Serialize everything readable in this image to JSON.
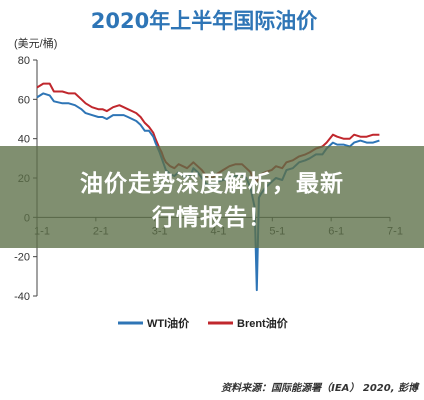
{
  "chart_data": {
    "type": "line",
    "title": "2020年上半年国际油价",
    "ylabel": "(美元/桶)",
    "xlabel": "",
    "ylim": [
      -40,
      80
    ],
    "yticks": [
      "80",
      "60",
      "40",
      "20",
      "0",
      "-20",
      "-40"
    ],
    "xticks": [
      "1-1",
      "2-1",
      "3-1",
      "4-1",
      "5-1",
      "6-1",
      "7-1"
    ],
    "grid": false,
    "legend_position": "bottom",
    "series": [
      {
        "name": "WTI油价",
        "color": "#2e75b6",
        "points": [
          [
            0,
            61
          ],
          [
            3,
            63
          ],
          [
            6,
            62
          ],
          [
            8,
            59
          ],
          [
            12,
            58
          ],
          [
            15,
            58
          ],
          [
            18,
            57
          ],
          [
            21,
            55
          ],
          [
            23,
            53
          ],
          [
            26,
            52
          ],
          [
            29,
            51
          ],
          [
            31,
            51
          ],
          [
            33,
            50
          ],
          [
            36,
            52
          ],
          [
            39,
            52
          ],
          [
            41,
            52
          ],
          [
            43,
            51
          ],
          [
            45,
            50
          ],
          [
            47,
            49
          ],
          [
            49,
            47
          ],
          [
            51,
            44
          ],
          [
            53,
            44
          ],
          [
            55,
            41
          ],
          [
            56,
            38
          ],
          [
            58,
            33
          ],
          [
            59,
            30
          ],
          [
            60,
            27
          ],
          [
            61,
            24
          ],
          [
            63,
            22
          ],
          [
            65,
            21
          ],
          [
            67,
            23
          ],
          [
            69,
            21
          ],
          [
            71,
            20
          ],
          [
            73,
            22
          ],
          [
            74,
            25
          ],
          [
            76,
            23
          ],
          [
            78,
            20
          ],
          [
            80,
            17
          ],
          [
            83,
            16
          ],
          [
            85,
            18
          ],
          [
            88,
            19
          ],
          [
            91,
            20
          ],
          [
            94,
            21
          ],
          [
            97,
            22
          ],
          [
            99,
            20
          ],
          [
            101,
            15
          ],
          [
            102,
            10
          ],
          [
            103,
            5
          ],
          [
            104,
            -37
          ],
          [
            105,
            10
          ],
          [
            106,
            12
          ],
          [
            108,
            15
          ],
          [
            111,
            18
          ],
          [
            113,
            20
          ],
          [
            116,
            19
          ],
          [
            118,
            24
          ],
          [
            121,
            25
          ],
          [
            124,
            28
          ],
          [
            127,
            29
          ],
          [
            129,
            30
          ],
          [
            132,
            32
          ],
          [
            135,
            32
          ],
          [
            137,
            35
          ],
          [
            140,
            38
          ],
          [
            142,
            37
          ],
          [
            145,
            37
          ],
          [
            148,
            36
          ],
          [
            150,
            38
          ],
          [
            153,
            39
          ],
          [
            156,
            38
          ],
          [
            159,
            38
          ],
          [
            162,
            39
          ]
        ]
      },
      {
        "name": "Brent油价",
        "color": "#c0272d",
        "points": [
          [
            0,
            66
          ],
          [
            3,
            68
          ],
          [
            6,
            68
          ],
          [
            8,
            64
          ],
          [
            12,
            64
          ],
          [
            15,
            63
          ],
          [
            18,
            63
          ],
          [
            21,
            60
          ],
          [
            23,
            58
          ],
          [
            26,
            56
          ],
          [
            29,
            55
          ],
          [
            31,
            55
          ],
          [
            33,
            54
          ],
          [
            36,
            56
          ],
          [
            39,
            57
          ],
          [
            41,
            56
          ],
          [
            43,
            55
          ],
          [
            45,
            54
          ],
          [
            47,
            53
          ],
          [
            49,
            51
          ],
          [
            51,
            48
          ],
          [
            53,
            46
          ],
          [
            55,
            43
          ],
          [
            56,
            40
          ],
          [
            58,
            35
          ],
          [
            59,
            33
          ],
          [
            60,
            30
          ],
          [
            61,
            28
          ],
          [
            63,
            26
          ],
          [
            65,
            25
          ],
          [
            67,
            27
          ],
          [
            69,
            26
          ],
          [
            71,
            25
          ],
          [
            73,
            27
          ],
          [
            74,
            28
          ],
          [
            76,
            26
          ],
          [
            78,
            24
          ],
          [
            80,
            21
          ],
          [
            83,
            20
          ],
          [
            85,
            22
          ],
          [
            88,
            24
          ],
          [
            91,
            26
          ],
          [
            94,
            27
          ],
          [
            97,
            27
          ],
          [
            99,
            25
          ],
          [
            101,
            23
          ],
          [
            102,
            20
          ],
          [
            103,
            19
          ],
          [
            104,
            18
          ],
          [
            105,
            20
          ],
          [
            106,
            22
          ],
          [
            108,
            23
          ],
          [
            111,
            24
          ],
          [
            113,
            26
          ],
          [
            116,
            25
          ],
          [
            118,
            28
          ],
          [
            121,
            29
          ],
          [
            124,
            31
          ],
          [
            127,
            32
          ],
          [
            129,
            33
          ],
          [
            132,
            35
          ],
          [
            135,
            36
          ],
          [
            137,
            38
          ],
          [
            140,
            42
          ],
          [
            142,
            41
          ],
          [
            145,
            40
          ],
          [
            148,
            40
          ],
          [
            150,
            42
          ],
          [
            153,
            41
          ],
          [
            156,
            41
          ],
          [
            159,
            42
          ],
          [
            162,
            42
          ]
        ]
      }
    ]
  },
  "overlay": {
    "line1": "油价走势深度解析，最新",
    "line2": "行情报告！"
  },
  "source": "资料来源：国际能源署（IEA） 2020, 彭博"
}
